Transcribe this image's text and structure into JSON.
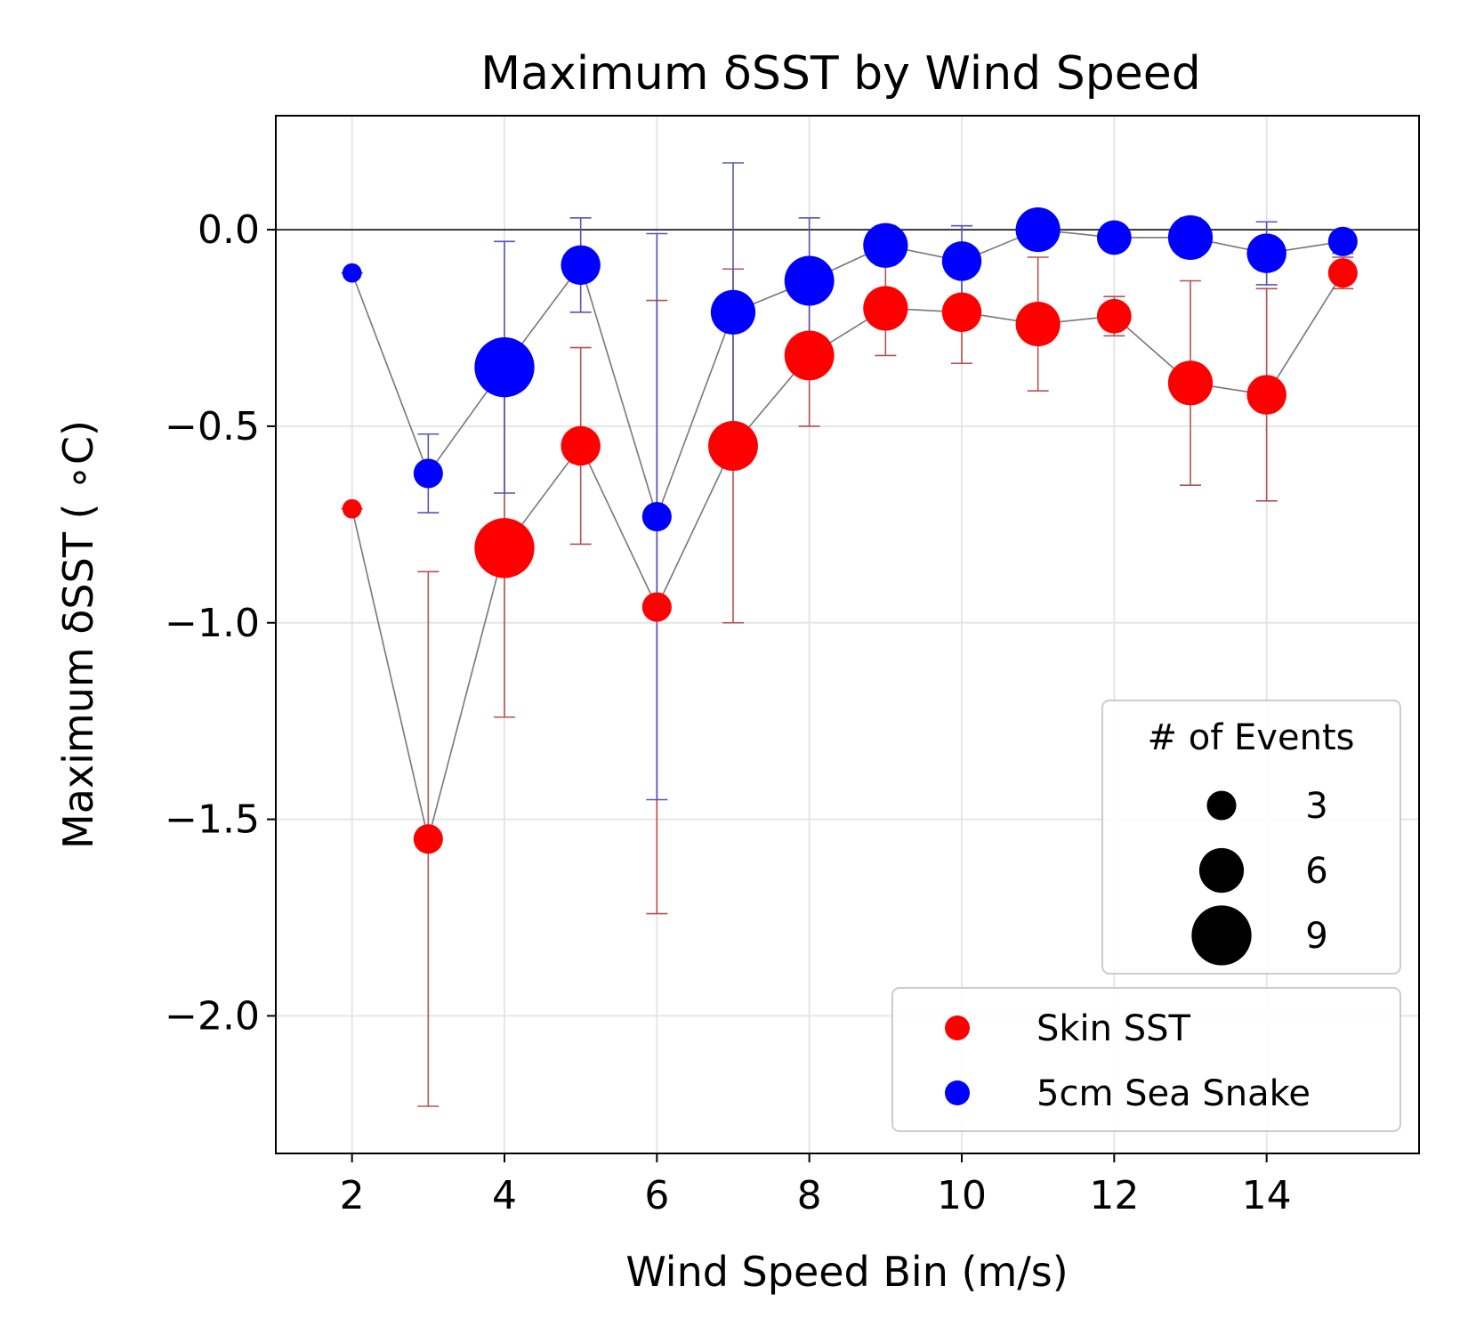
{
  "chart_data": {
    "type": "scatter",
    "title": "Maximum δSST by Wind Speed",
    "xlabel": "Wind Speed Bin (m/s)",
    "ylabel": "Maximum δSST ( ∘C)",
    "xlim": [
      1,
      16
    ],
    "ylim": [
      -2.35,
      0.29
    ],
    "xticks": [
      2,
      4,
      6,
      8,
      10,
      12,
      14
    ],
    "xtick_labels": [
      "2",
      "4",
      "6",
      "8",
      "10",
      "12",
      "14"
    ],
    "yticks": [
      0.0,
      -0.5,
      -1.0,
      -1.5,
      -2.0
    ],
    "ytick_labels": [
      "0.0",
      "−0.5",
      "−1.0",
      "−1.5",
      "−2.0"
    ],
    "grid": true,
    "reference_line_y": 0.0,
    "size_legend": {
      "title": "# of Events",
      "entries": [
        {
          "label": "3",
          "count": 3
        },
        {
          "label": "6",
          "count": 6
        },
        {
          "label": "9",
          "count": 9
        }
      ],
      "placement": "right"
    },
    "series_legend_placement": "lower-right",
    "series": [
      {
        "name": "Skin SST",
        "color": "#ff0000",
        "errorbar_color": "#b85050",
        "x": [
          2,
          3,
          4,
          5,
          6,
          7,
          8,
          9,
          10,
          11,
          12,
          13,
          14,
          15
        ],
        "y": [
          -0.71,
          -1.55,
          -0.81,
          -0.55,
          -0.96,
          -0.55,
          -0.32,
          -0.2,
          -0.21,
          -0.24,
          -0.22,
          -0.39,
          -0.42,
          -0.11
        ],
        "err": [
          0.0,
          0.68,
          0.43,
          0.25,
          0.78,
          0.45,
          0.18,
          0.12,
          0.13,
          0.17,
          0.05,
          0.26,
          0.27,
          0.04
        ],
        "events": [
          1,
          3,
          9,
          5,
          3,
          7,
          7,
          6,
          5,
          6,
          4,
          6,
          5,
          3
        ]
      },
      {
        "name": "5cm Sea Snake",
        "color": "#0000ff",
        "errorbar_color": "#5555b8",
        "x": [
          2,
          3,
          4,
          5,
          6,
          7,
          8,
          9,
          10,
          11,
          12,
          13,
          14,
          15
        ],
        "y": [
          -0.11,
          -0.62,
          -0.35,
          -0.09,
          -0.73,
          -0.21,
          -0.13,
          -0.04,
          -0.08,
          0.0,
          -0.02,
          -0.02,
          -0.06,
          -0.03
        ],
        "err": [
          0.0,
          0.1,
          0.32,
          0.12,
          0.72,
          0.38,
          0.16,
          0.05,
          0.09,
          0.0,
          0.0,
          0.05,
          0.08,
          0.03
        ],
        "events": [
          1,
          3,
          9,
          5,
          3,
          6,
          7,
          6,
          5,
          6,
          4,
          6,
          5,
          3
        ]
      }
    ]
  }
}
